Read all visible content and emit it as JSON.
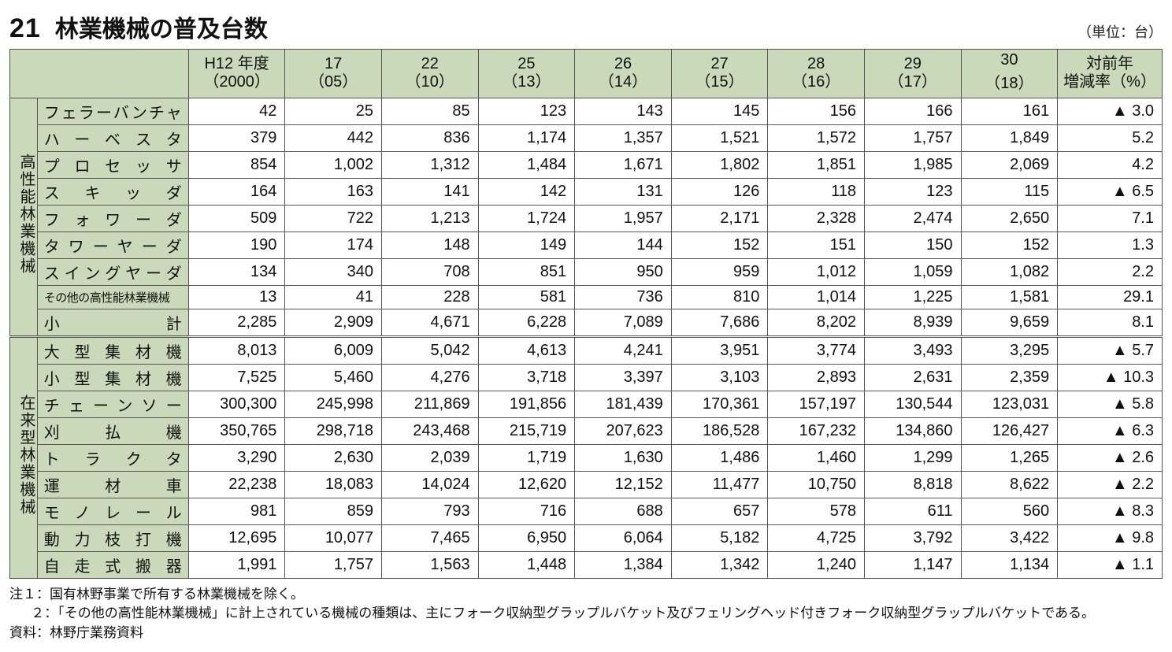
{
  "header": {
    "table_number": "21",
    "title": "林業機械の普及台数",
    "unit": "（単位：台）"
  },
  "columns": [
    {
      "line1": "H12 年度",
      "line2": "（2000）"
    },
    {
      "line1": "17",
      "line2": "（05）"
    },
    {
      "line1": "22",
      "line2": "（10）"
    },
    {
      "line1": "25",
      "line2": "（13）"
    },
    {
      "line1": "26",
      "line2": "（14）"
    },
    {
      "line1": "27",
      "line2": "（15）"
    },
    {
      "line1": "28",
      "line2": "（16）"
    },
    {
      "line1": "29",
      "line2": "（17）"
    },
    {
      "line1": "30",
      "line2": "（18）"
    }
  ],
  "pct_header": "対前年\n増減率（%）",
  "categories": [
    {
      "label": "高性能林業機械",
      "rows": [
        {
          "name": "フェラーバンチャ",
          "vals": [
            "42",
            "25",
            "85",
            "123",
            "143",
            "145",
            "156",
            "166",
            "161"
          ],
          "pct": "▲ 3.0"
        },
        {
          "name": "ハーベスタ",
          "vals": [
            "379",
            "442",
            "836",
            "1,174",
            "1,357",
            "1,521",
            "1,572",
            "1,757",
            "1,849"
          ],
          "pct": "5.2"
        },
        {
          "name": "プロセッサ",
          "vals": [
            "854",
            "1,002",
            "1,312",
            "1,484",
            "1,671",
            "1,802",
            "1,851",
            "1,985",
            "2,069"
          ],
          "pct": "4.2"
        },
        {
          "name": "スキッダ",
          "vals": [
            "164",
            "163",
            "141",
            "142",
            "131",
            "126",
            "118",
            "123",
            "115"
          ],
          "pct": "▲ 6.5"
        },
        {
          "name": "フォワーダ",
          "vals": [
            "509",
            "722",
            "1,213",
            "1,724",
            "1,957",
            "2,171",
            "2,328",
            "2,474",
            "2,650"
          ],
          "pct": "7.1"
        },
        {
          "name": "タワーヤーダ",
          "vals": [
            "190",
            "174",
            "148",
            "149",
            "144",
            "152",
            "151",
            "150",
            "152"
          ],
          "pct": "1.3"
        },
        {
          "name": "スイングヤーダ",
          "vals": [
            "134",
            "340",
            "708",
            "851",
            "950",
            "959",
            "1,012",
            "1,059",
            "1,082"
          ],
          "pct": "2.2"
        },
        {
          "name": "その他の高性能林業機械",
          "small": true,
          "vals": [
            "13",
            "41",
            "228",
            "581",
            "736",
            "810",
            "1,014",
            "1,225",
            "1,581"
          ],
          "pct": "29.1"
        },
        {
          "name": "小計",
          "vals": [
            "2,285",
            "2,909",
            "4,671",
            "6,228",
            "7,089",
            "7,686",
            "8,202",
            "8,939",
            "9,659"
          ],
          "pct": "8.1"
        }
      ]
    },
    {
      "label": "在来型林業機械",
      "rows": [
        {
          "name": "大型集材機",
          "vals": [
            "8,013",
            "6,009",
            "5,042",
            "4,613",
            "4,241",
            "3,951",
            "3,774",
            "3,493",
            "3,295"
          ],
          "pct": "▲ 5.7"
        },
        {
          "name": "小型集材機",
          "vals": [
            "7,525",
            "5,460",
            "4,276",
            "3,718",
            "3,397",
            "3,103",
            "2,893",
            "2,631",
            "2,359"
          ],
          "pct": "▲ 10.3"
        },
        {
          "name": "チェーンソー",
          "vals": [
            "300,300",
            "245,998",
            "211,869",
            "191,856",
            "181,439",
            "170,361",
            "157,197",
            "130,544",
            "123,031"
          ],
          "pct": "▲ 5.8"
        },
        {
          "name": "刈払機",
          "vals": [
            "350,765",
            "298,718",
            "243,468",
            "215,719",
            "207,623",
            "186,528",
            "167,232",
            "134,860",
            "126,427"
          ],
          "pct": "▲ 6.3"
        },
        {
          "name": "トラクタ",
          "vals": [
            "3,290",
            "2,630",
            "2,039",
            "1,719",
            "1,630",
            "1,486",
            "1,460",
            "1,299",
            "1,265"
          ],
          "pct": "▲ 2.6"
        },
        {
          "name": "運材車",
          "vals": [
            "22,238",
            "18,083",
            "14,024",
            "12,620",
            "12,152",
            "11,477",
            "10,750",
            "8,818",
            "8,622"
          ],
          "pct": "▲ 2.2"
        },
        {
          "name": "モノレール",
          "vals": [
            "981",
            "859",
            "793",
            "716",
            "688",
            "657",
            "578",
            "611",
            "560"
          ],
          "pct": "▲ 8.3"
        },
        {
          "name": "動力枝打機",
          "vals": [
            "12,695",
            "10,077",
            "7,465",
            "6,950",
            "6,064",
            "5,182",
            "4,725",
            "3,792",
            "3,422"
          ],
          "pct": "▲ 9.8"
        },
        {
          "name": "自走式搬器",
          "vals": [
            "1,991",
            "1,757",
            "1,563",
            "1,448",
            "1,384",
            "1,342",
            "1,240",
            "1,147",
            "1,134"
          ],
          "pct": "▲ 1.1"
        }
      ]
    }
  ],
  "notes": {
    "n1": "注１：国有林野事業で所有する林業機械を除く。",
    "n2": "２：「その他の高性能林業機械」に計上されている機械の種類は、主にフォーク収納型グラップルバケット及びフェリングヘッド付きフォーク収納型グラップルバケットである。",
    "src": "資料：林野庁業務資料"
  },
  "style": {
    "header_bg": "#cad9b9",
    "border": "#555555",
    "font_size_body": 20,
    "font_size_title": 30
  }
}
